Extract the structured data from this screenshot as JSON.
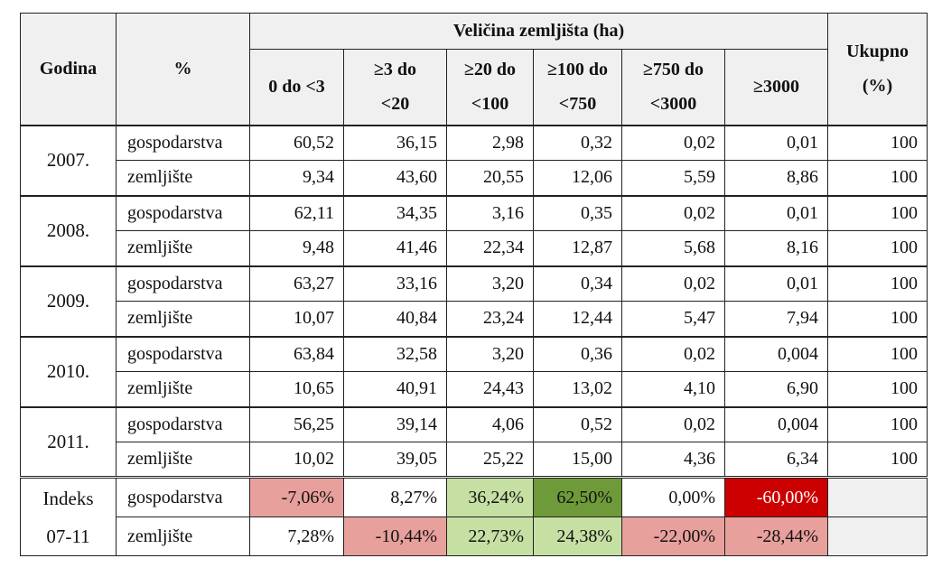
{
  "header": {
    "godina": "Godina",
    "percent": "%",
    "group_title": "Veličina zemljišta (ha)",
    "ukupno_line1": "Ukupno",
    "ukupno_line2": "(%)",
    "columns": [
      {
        "l1": "0 do <3",
        "l2": ""
      },
      {
        "l1": "≥3 do",
        "l2": "<20"
      },
      {
        "l1": "≥20 do",
        "l2": "<100"
      },
      {
        "l1": "≥100 do",
        "l2": "<750"
      },
      {
        "l1": "≥750 do",
        "l2": "<3000"
      },
      {
        "l1": "≥3000",
        "l2": ""
      }
    ]
  },
  "rows": [
    {
      "year": "2007.",
      "g": {
        "label": "gospodarstva",
        "values": [
          "60,52",
          "36,15",
          "2,98",
          "0,32",
          "0,02",
          "0,01"
        ],
        "total": "100"
      },
      "z": {
        "label": "zemljište",
        "values": [
          "9,34",
          "43,60",
          "20,55",
          "12,06",
          "5,59",
          "8,86"
        ],
        "total": "100"
      }
    },
    {
      "year": "2008.",
      "g": {
        "label": "gospodarstva",
        "values": [
          "62,11",
          "34,35",
          "3,16",
          "0,35",
          "0,02",
          "0,01"
        ],
        "total": "100"
      },
      "z": {
        "label": "zemljište",
        "values": [
          "9,48",
          "41,46",
          "22,34",
          "12,87",
          "5,68",
          "8,16"
        ],
        "total": "100"
      }
    },
    {
      "year": "2009.",
      "g": {
        "label": "gospodarstva",
        "values": [
          "63,27",
          "33,16",
          "3,20",
          "0,34",
          "0,02",
          "0,01"
        ],
        "total": "100"
      },
      "z": {
        "label": "zemljište",
        "values": [
          "10,07",
          "40,84",
          "23,24",
          "12,44",
          "5,47",
          "7,94"
        ],
        "total": "100"
      }
    },
    {
      "year": "2010.",
      "g": {
        "label": "gospodarstva",
        "values": [
          "63,84",
          "32,58",
          "3,20",
          "0,36",
          "0,02",
          "0,004"
        ],
        "total": "100"
      },
      "z": {
        "label": "zemljište",
        "values": [
          "10,65",
          "40,91",
          "24,43",
          "13,02",
          "4,10",
          "6,90"
        ],
        "total": "100"
      }
    },
    {
      "year": "2011.",
      "g": {
        "label": "gospodarstva",
        "values": [
          "56,25",
          "39,14",
          "4,06",
          "0,52",
          "0,02",
          "0,004"
        ],
        "total": "100"
      },
      "z": {
        "label": "zemljište",
        "values": [
          "10,02",
          "39,05",
          "25,22",
          "15,00",
          "4,36",
          "6,34"
        ],
        "total": "100"
      }
    }
  ],
  "index": {
    "label_line1": "Indeks",
    "label_line2": "07-11",
    "g": {
      "label": "gospodarstva",
      "values": [
        "-7,06%",
        "8,27%",
        "36,24%",
        "62,50%",
        "0,00%",
        "-60,00%"
      ],
      "colors": [
        "#e8a09c",
        "#ffffff",
        "#c6e0a4",
        "#6e9a3a",
        "#ffffff",
        "#cc0000"
      ],
      "text_colors": [
        "#111111",
        "#111111",
        "#111111",
        "#111111",
        "#111111",
        "#ffffff"
      ]
    },
    "z": {
      "label": "zemljište",
      "values": [
        "7,28%",
        "-10,44%",
        "22,73%",
        "24,38%",
        "-22,00%",
        "-28,44%"
      ],
      "colors": [
        "#ffffff",
        "#e8a09c",
        "#c6e0a4",
        "#c6e0a4",
        "#e8a09c",
        "#e8a09c"
      ],
      "text_colors": [
        "#111111",
        "#111111",
        "#111111",
        "#111111",
        "#111111",
        "#111111"
      ]
    },
    "total_bg": "#f0f0f0"
  }
}
